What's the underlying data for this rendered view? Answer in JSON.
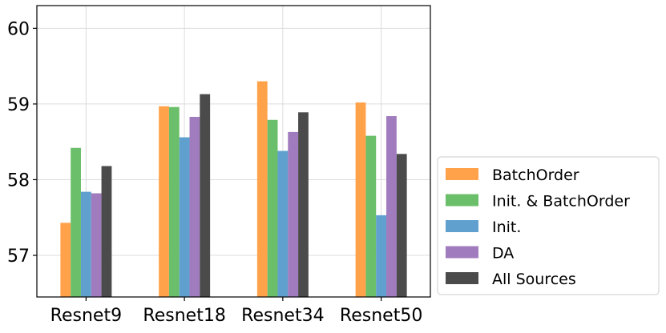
{
  "chart_data": {
    "type": "bar",
    "title": "",
    "xlabel": "",
    "ylabel": "",
    "categories": [
      "Resnet9",
      "Resnet18",
      "Resnet34",
      "Resnet50"
    ],
    "ylim": [
      56.45,
      60.3
    ],
    "yticks": [
      57,
      58,
      59,
      60
    ],
    "grid": true,
    "legend_position": "outside-right-bottom",
    "series": [
      {
        "name": "BatchOrder",
        "color": "#FFA24A",
        "values": [
          57.43,
          58.97,
          59.3,
          59.02
        ]
      },
      {
        "name": "Init. & BatchOrder",
        "color": "#6CBF6A",
        "values": [
          58.42,
          58.96,
          58.79,
          58.58
        ]
      },
      {
        "name": "Init.",
        "color": "#5FA0CF",
        "values": [
          57.84,
          58.56,
          58.38,
          57.53
        ]
      },
      {
        "name": "DA",
        "color": "#A07BBE",
        "values": [
          57.82,
          58.83,
          58.63,
          58.84
        ]
      },
      {
        "name": "All Sources",
        "color": "#4B4B4B",
        "values": [
          58.18,
          59.13,
          58.89,
          58.34
        ]
      }
    ]
  }
}
